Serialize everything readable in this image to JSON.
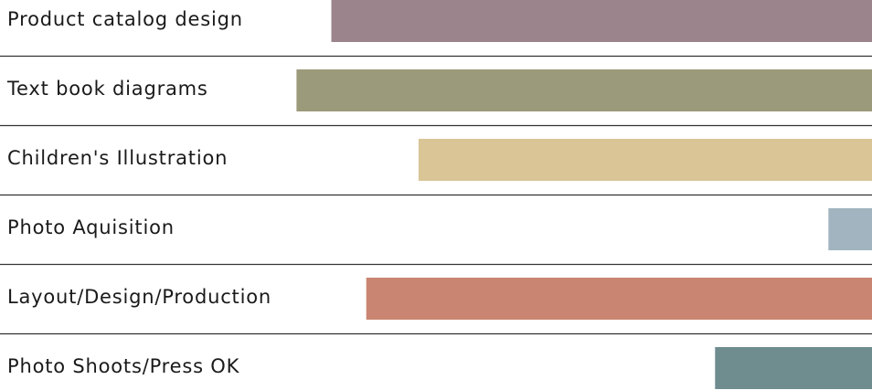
{
  "chart_data": {
    "type": "bar",
    "orientation": "horizontal",
    "categories": [
      "Product catalog design",
      "Text book diagrams",
      "Children's Illustration",
      "Photo Aquisition",
      "Layout/Design/Production",
      "Photo Shoots/Press OK"
    ],
    "values": [
      62,
      66,
      52,
      5,
      58,
      18
    ],
    "xlim": [
      0,
      100
    ],
    "colors": [
      "#9b848b",
      "#9b9a7a",
      "#d9c596",
      "#a1b4bf",
      "#c98571",
      "#6f8c8f"
    ],
    "grid": false,
    "legend": "none"
  }
}
